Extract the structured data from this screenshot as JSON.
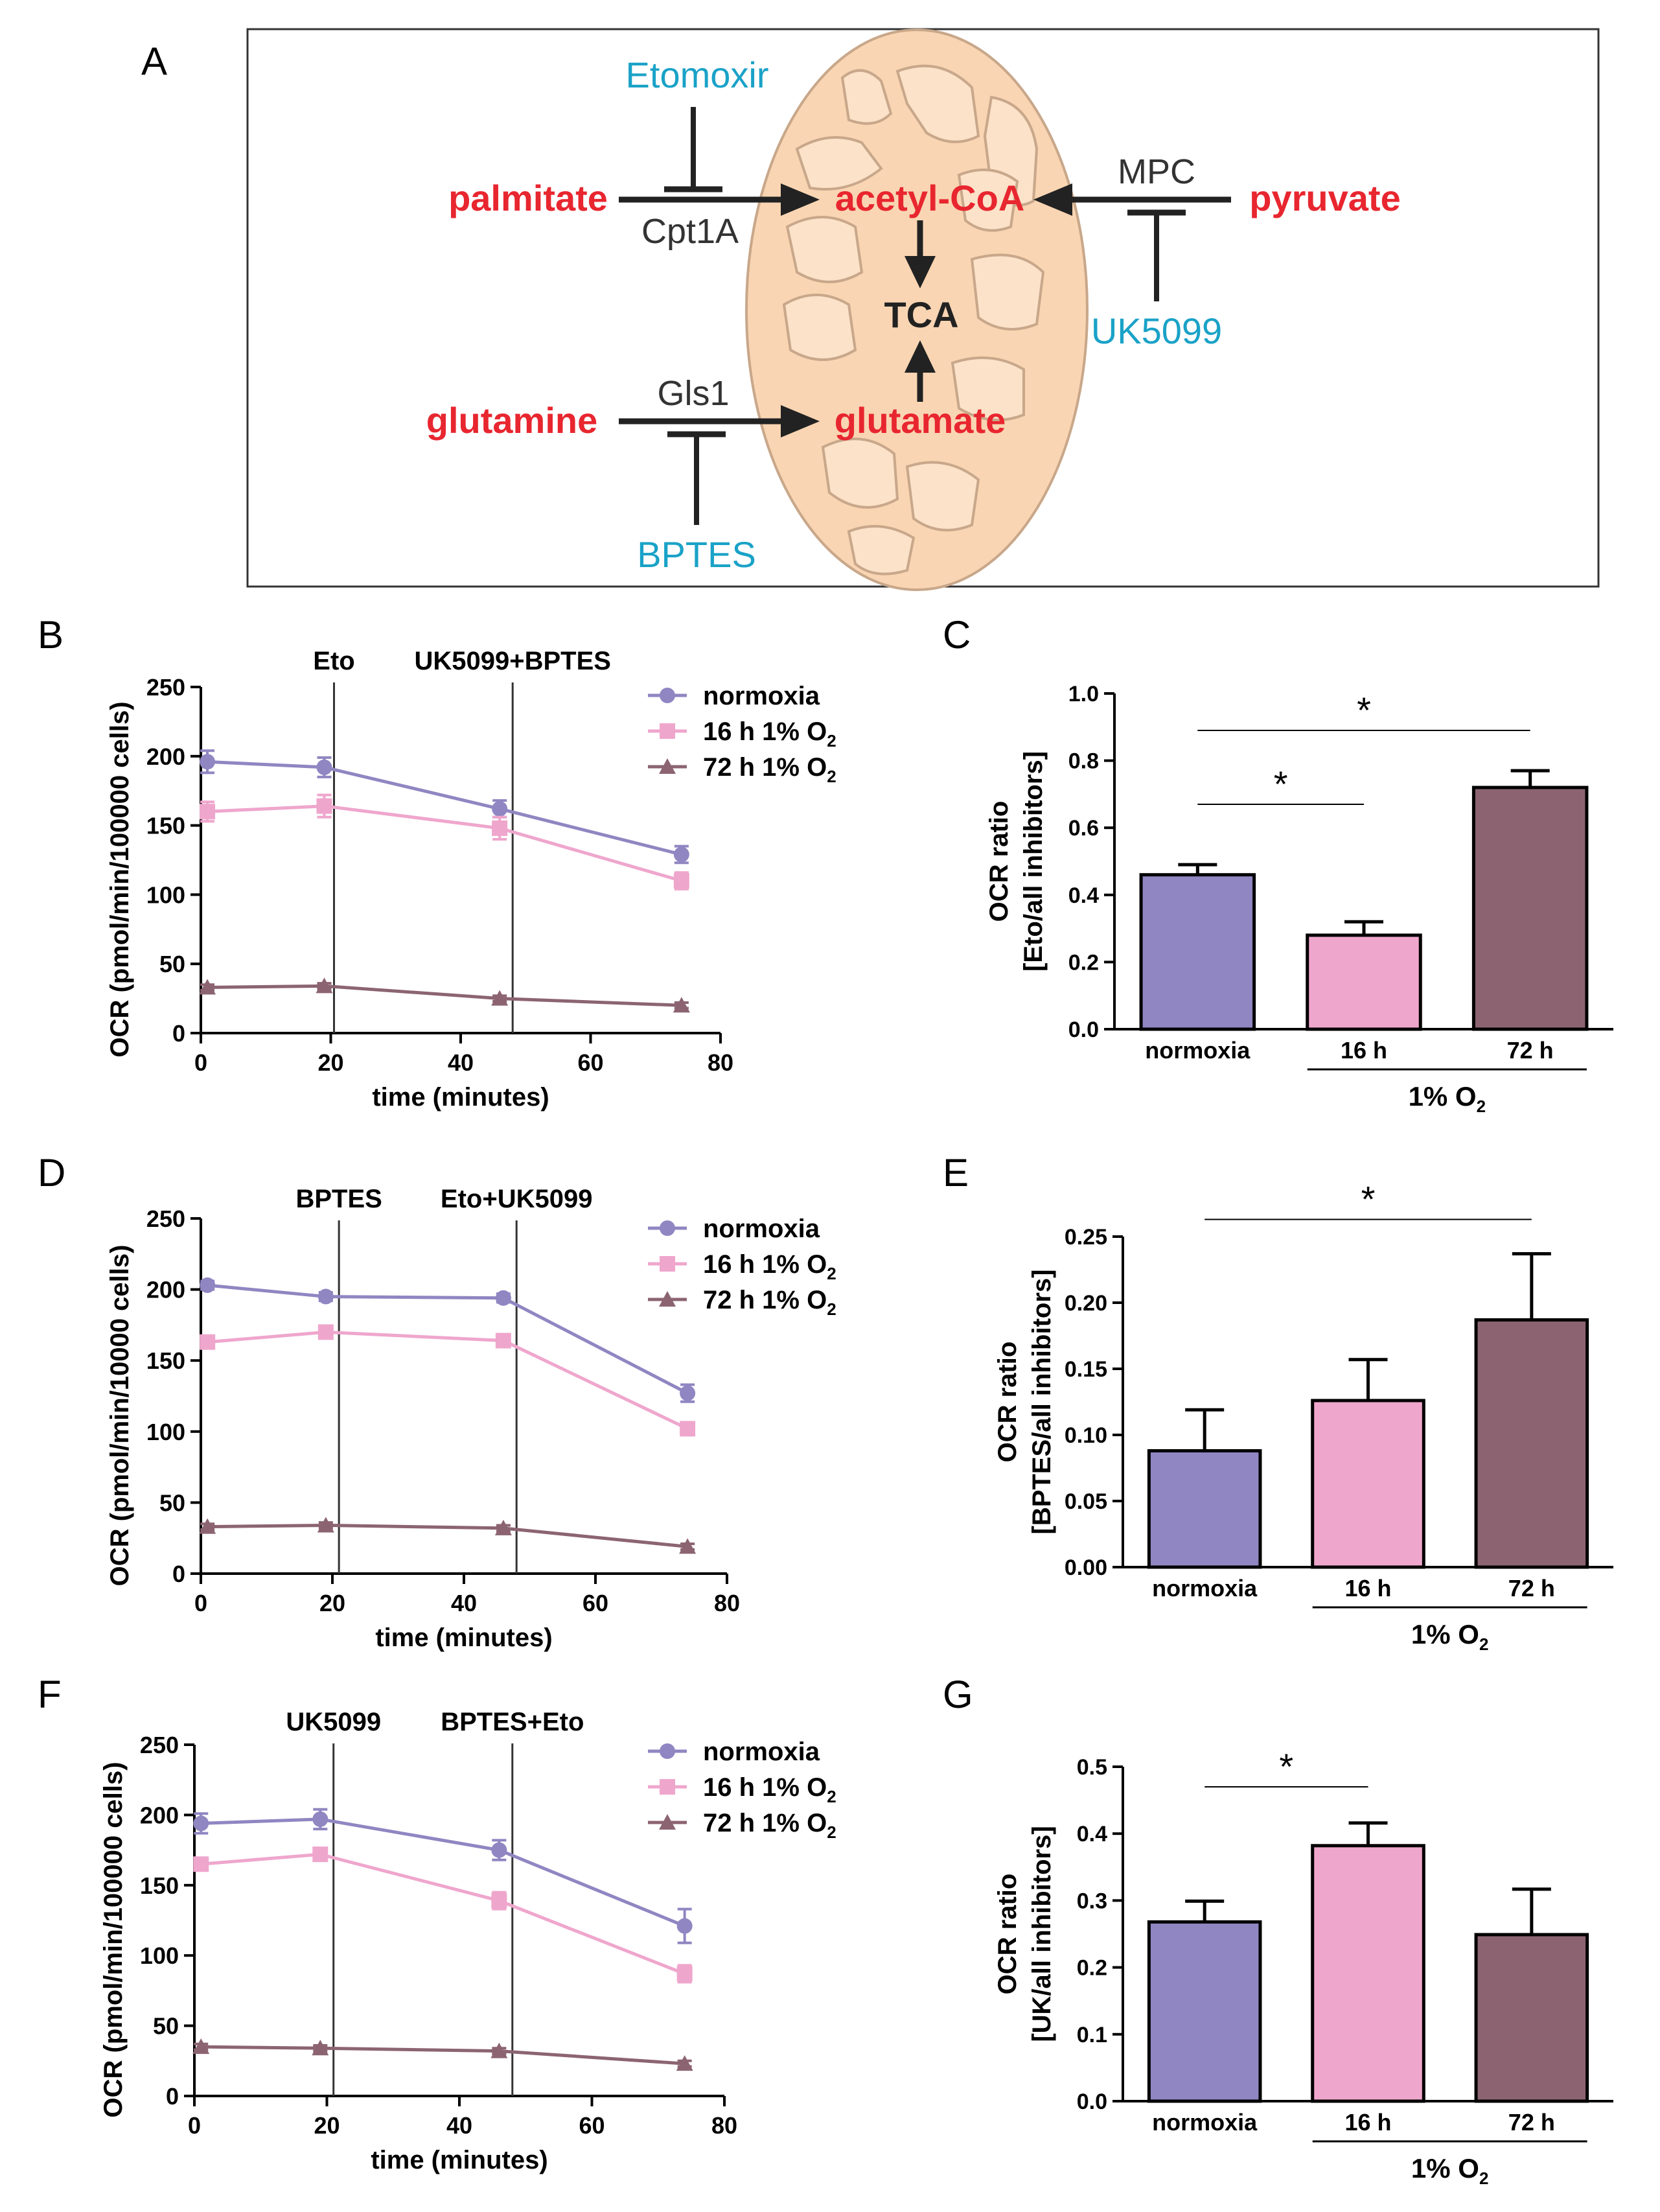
{
  "panel_labels": [
    "A",
    "B",
    "C",
    "D",
    "E",
    "F",
    "G"
  ],
  "colors": {
    "normoxia": "#8f86c2",
    "h16": "#efa6cd",
    "h72": "#8c6471",
    "metabolite": "#e8262f",
    "inhibitor": "#1aa2c7",
    "mito_fill": "#f9d5b3",
    "mito_inner": "#fbe2c8"
  },
  "diagram": {
    "metabolites": {
      "palmitate": "palmitate",
      "acetyl_coa": "acetyl-CoA",
      "pyruvate": "pyruvate",
      "glutamine": "glutamine",
      "glutamate": "glutamate"
    },
    "enzymes": {
      "cpt1a": "Cpt1A",
      "mpc": "MPC",
      "gls1": "Gls1"
    },
    "inhibitors": {
      "etomoxir": "Etomoxir",
      "uk5099": "UK5099",
      "bptes": "BPTES"
    },
    "tca": "TCA"
  },
  "chart_data": [
    {
      "panel": "B",
      "type": "line",
      "xlabel": "time (minutes)",
      "ylabel": "OCR (pmol/min/100000 cells)",
      "xlim": [
        0,
        80
      ],
      "ylim": [
        0,
        250
      ],
      "xticks": [
        "0",
        "20",
        "40",
        "60",
        "80"
      ],
      "yticks": [
        "0",
        "50",
        "100",
        "150",
        "200",
        "250"
      ],
      "injections": [
        {
          "label": "Eto",
          "x": 20.5
        },
        {
          "label": "UK5099+BPTES",
          "x": 48
        }
      ],
      "x": [
        1,
        19,
        46,
        74
      ],
      "series": [
        {
          "name": "normoxia",
          "legend_text": "normoxia",
          "legend_sub": "",
          "marker": "circle",
          "values": [
            196,
            192,
            162,
            129
          ],
          "errors": [
            8,
            7,
            6,
            6
          ]
        },
        {
          "name": "16 h 1% O2",
          "legend_text": "16 h 1% O",
          "legend_sub": "2",
          "marker": "square",
          "values": [
            160,
            164,
            148,
            110
          ],
          "errors": [
            7,
            8,
            8,
            6
          ]
        },
        {
          "name": "72 h 1% O2",
          "legend_text": "72 h 1% O",
          "legend_sub": "2",
          "marker": "triangle",
          "values": [
            33,
            34,
            25,
            20
          ],
          "errors": [
            2,
            2,
            2,
            2
          ]
        }
      ]
    },
    {
      "panel": "C",
      "type": "bar",
      "ylabel": "OCR ratio",
      "ylabel2": "[Eto/all inhibitors]",
      "ylim": [
        0,
        1.0
      ],
      "yticks": [
        "0.0",
        "0.2",
        "0.4",
        "0.6",
        "0.8",
        "1.0"
      ],
      "categories": [
        "normoxia",
        "16 h",
        "72 h"
      ],
      "values": [
        0.46,
        0.28,
        0.72
      ],
      "errors": [
        0.03,
        0.04,
        0.05
      ],
      "group_label": "1% O",
      "group_sub": "2",
      "significance": [
        {
          "from": 0,
          "to": 1,
          "label": "*",
          "y": 0.67
        },
        {
          "from": 0,
          "to": 2,
          "label": "*",
          "y": 0.89
        }
      ]
    },
    {
      "panel": "D",
      "type": "line",
      "xlabel": "time (minutes)",
      "ylabel": "OCR (pmol/min/10000 cells)",
      "xlim": [
        0,
        80
      ],
      "ylim": [
        0,
        250
      ],
      "xticks": [
        "0",
        "20",
        "40",
        "60",
        "80"
      ],
      "yticks": [
        "0",
        "50",
        "100",
        "150",
        "200",
        "250"
      ],
      "injections": [
        {
          "label": "BPTES",
          "x": 21
        },
        {
          "label": "Eto+UK5099",
          "x": 48
        }
      ],
      "x": [
        1,
        19,
        46,
        74
      ],
      "series": [
        {
          "name": "normoxia",
          "legend_text": "normoxia",
          "legend_sub": "",
          "marker": "circle",
          "values": [
            203,
            195,
            194,
            127
          ],
          "errors": [
            3,
            3,
            3,
            6
          ]
        },
        {
          "name": "16 h 1% O2",
          "legend_text": "16 h 1% O",
          "legend_sub": "2",
          "marker": "square",
          "values": [
            163,
            170,
            164,
            102
          ],
          "errors": [
            3,
            3,
            3,
            3
          ]
        },
        {
          "name": "72 h 1% O2",
          "legend_text": "72 h 1% O",
          "legend_sub": "2",
          "marker": "triangle",
          "values": [
            33,
            34,
            32,
            19
          ],
          "errors": [
            2,
            2,
            2,
            2
          ]
        }
      ]
    },
    {
      "panel": "E",
      "type": "bar",
      "ylabel": "OCR ratio",
      "ylabel2": "[BPTES/all inhibitors]",
      "ylim": [
        0,
        0.25
      ],
      "yticks": [
        "0.00",
        "0.05",
        "0.10",
        "0.15",
        "0.20",
        "0.25"
      ],
      "categories": [
        "normoxia",
        "16 h",
        "72 h"
      ],
      "values": [
        0.088,
        0.126,
        0.187
      ],
      "errors": [
        0.031,
        0.031,
        0.05
      ],
      "group_label": "1% O",
      "group_sub": "2",
      "significance": [
        {
          "from": 0,
          "to": 2,
          "label": "*",
          "y": 0.263
        }
      ]
    },
    {
      "panel": "F",
      "type": "line",
      "xlabel": "time (minutes)",
      "ylabel": "OCR (pmol/min/100000 cells)",
      "xlim": [
        0,
        80
      ],
      "ylim": [
        0,
        250
      ],
      "xticks": [
        "0",
        "20",
        "40",
        "60",
        "80"
      ],
      "yticks": [
        "0",
        "50",
        "100",
        "150",
        "200",
        "250"
      ],
      "injections": [
        {
          "label": "UK5099",
          "x": 21
        },
        {
          "label": "BPTES+Eto",
          "x": 48
        }
      ],
      "x": [
        1,
        19,
        46,
        74
      ],
      "series": [
        {
          "name": "normoxia",
          "legend_text": "normoxia",
          "legend_sub": "",
          "marker": "circle",
          "values": [
            194,
            197,
            175,
            121
          ],
          "errors": [
            7,
            7,
            7,
            12
          ]
        },
        {
          "name": "16 h 1% O2",
          "legend_text": "16 h 1% O",
          "legend_sub": "2",
          "marker": "square",
          "values": [
            165,
            172,
            139,
            87
          ],
          "errors": [
            4,
            4,
            6,
            6
          ]
        },
        {
          "name": "72 h 1% O2",
          "legend_text": "72 h 1% O",
          "legend_sub": "2",
          "marker": "triangle",
          "values": [
            35,
            34,
            32,
            23
          ],
          "errors": [
            2,
            2,
            2,
            2
          ]
        }
      ]
    },
    {
      "panel": "G",
      "type": "bar",
      "ylabel": "OCR ratio",
      "ylabel2": "[UK/all inhibitors]",
      "ylim": [
        0,
        0.5
      ],
      "yticks": [
        "0.0",
        "0.1",
        "0.2",
        "0.3",
        "0.4",
        "0.5"
      ],
      "categories": [
        "normoxia",
        "16 h",
        "72 h"
      ],
      "values": [
        0.268,
        0.382,
        0.249
      ],
      "errors": [
        0.031,
        0.034,
        0.068
      ],
      "group_label": "1% O",
      "group_sub": "2",
      "significance": [
        {
          "from": 0,
          "to": 1,
          "label": "*",
          "y": 0.47
        }
      ]
    }
  ]
}
